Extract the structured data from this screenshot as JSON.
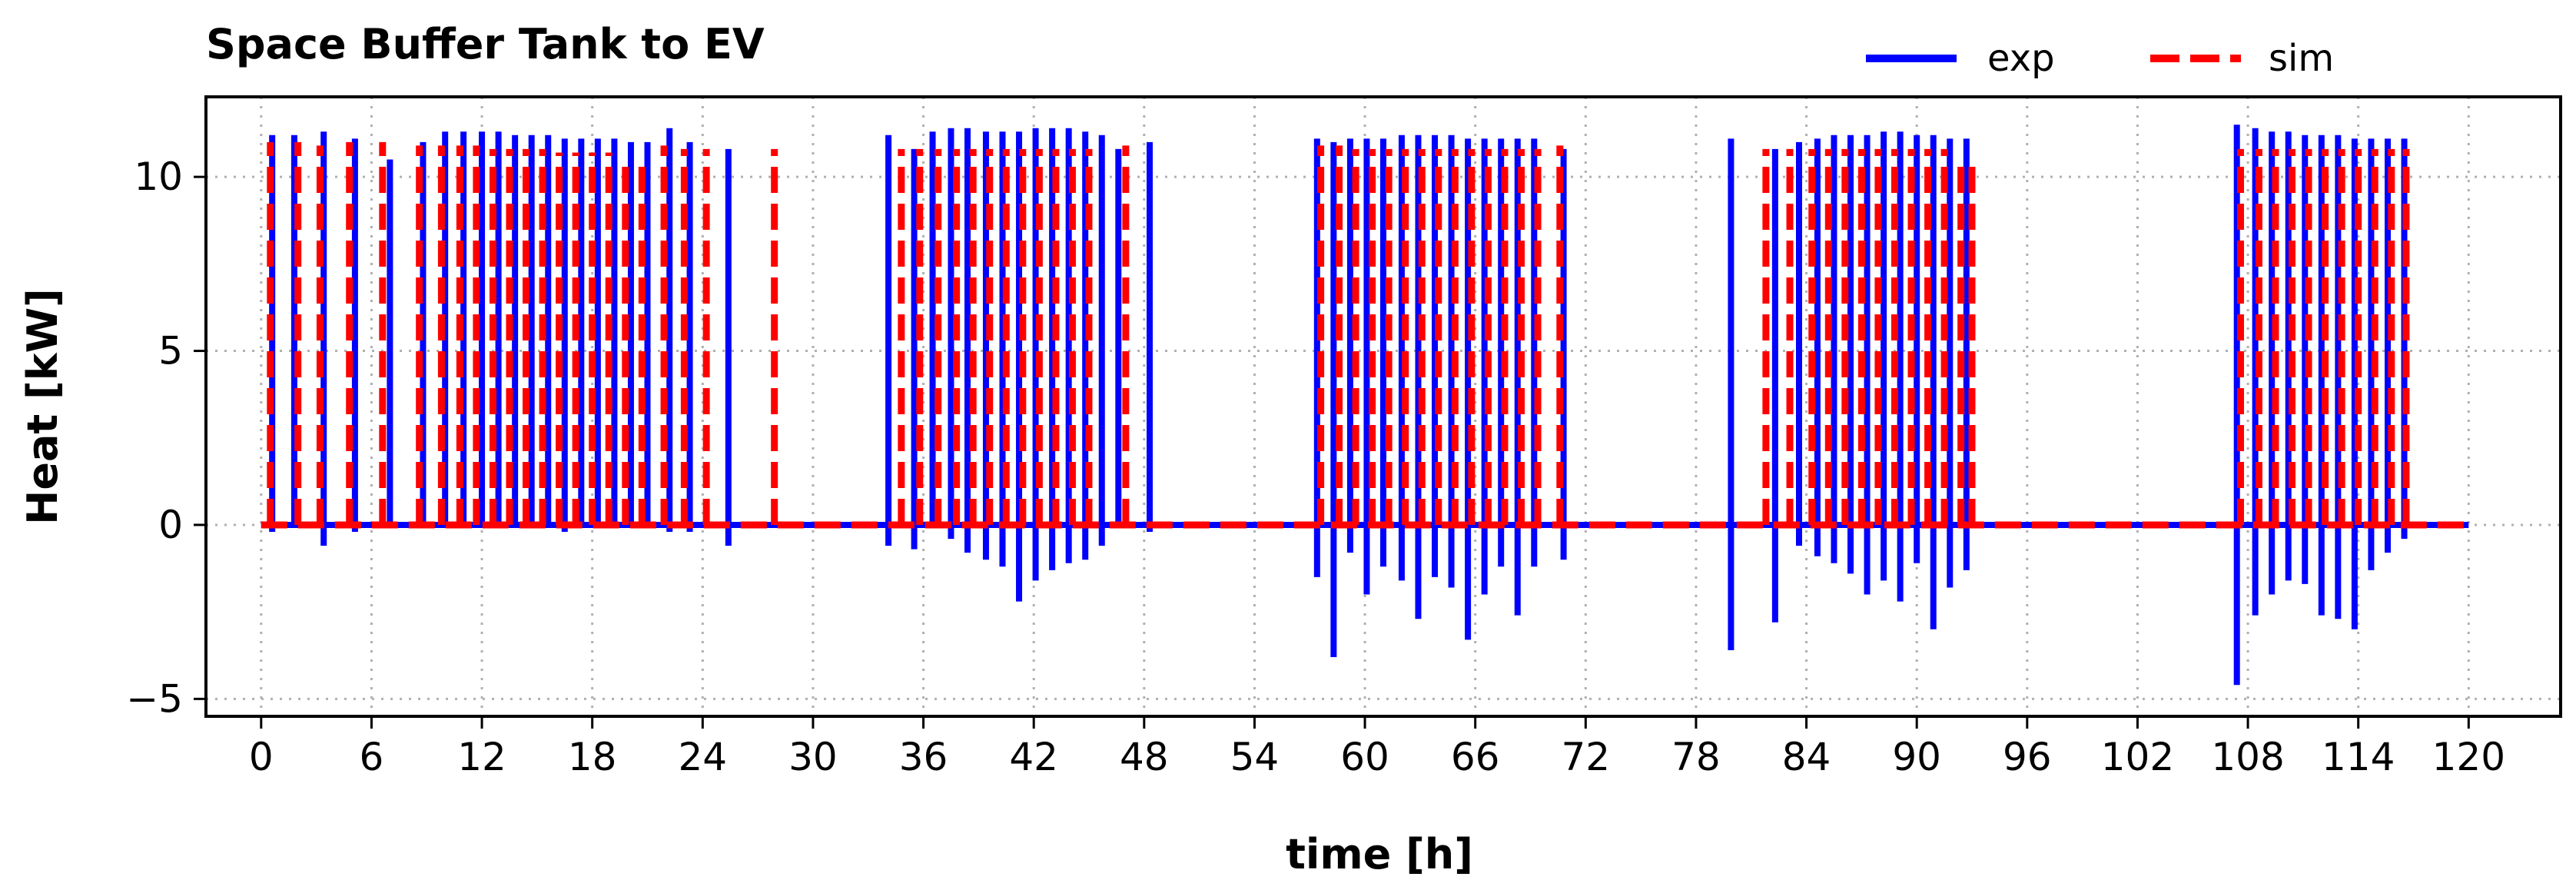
{
  "chart_data": {
    "type": "line",
    "title": "Space Buffer Tank to EV",
    "xlabel": "time [h]",
    "ylabel": "Heat [kW]",
    "xlim": [
      -3,
      125
    ],
    "ylim": [
      -5.5,
      12.3
    ],
    "xticks": [
      0,
      6,
      12,
      18,
      24,
      30,
      36,
      42,
      48,
      54,
      60,
      66,
      72,
      78,
      84,
      90,
      96,
      102,
      108,
      114,
      120
    ],
    "xtick_labels": [
      "0",
      "6",
      "12",
      "18",
      "24",
      "30",
      "36",
      "42",
      "48",
      "54",
      "60",
      "66",
      "72",
      "78",
      "84",
      "90",
      "96",
      "102",
      "108",
      "114",
      "120"
    ],
    "yticks": [
      -5,
      0,
      5,
      10
    ],
    "ytick_labels": [
      "−5",
      "0",
      "5",
      "10"
    ],
    "grid": true,
    "legend_position": "top-right, outside above axes",
    "series": [
      {
        "name": "exp",
        "color": "#0000ff",
        "style": "solid",
        "pulses": [
          {
            "t": 0.6,
            "peak": 11.2,
            "neg": -0.2
          },
          {
            "t": 1.8,
            "peak": 11.2,
            "neg": 0
          },
          {
            "t": 3.4,
            "peak": 11.3,
            "neg": -0.6
          },
          {
            "t": 5.1,
            "peak": 11.1,
            "neg": -0.2
          },
          {
            "t": 7.0,
            "peak": 10.5,
            "neg": 0
          },
          {
            "t": 8.8,
            "peak": 11.0,
            "neg": 0
          },
          {
            "t": 10.0,
            "peak": 11.3,
            "neg": 0
          },
          {
            "t": 11.0,
            "peak": 11.3,
            "neg": 0
          },
          {
            "t": 12.0,
            "peak": 11.3,
            "neg": 0
          },
          {
            "t": 12.9,
            "peak": 11.3,
            "neg": 0
          },
          {
            "t": 13.8,
            "peak": 11.2,
            "neg": 0
          },
          {
            "t": 14.7,
            "peak": 11.2,
            "neg": 0
          },
          {
            "t": 15.6,
            "peak": 11.2,
            "neg": 0
          },
          {
            "t": 16.5,
            "peak": 11.1,
            "neg": -0.2
          },
          {
            "t": 17.4,
            "peak": 11.1,
            "neg": 0
          },
          {
            "t": 18.3,
            "peak": 11.1,
            "neg": 0
          },
          {
            "t": 19.2,
            "peak": 11.1,
            "neg": 0
          },
          {
            "t": 20.1,
            "peak": 11.0,
            "neg": 0
          },
          {
            "t": 21.0,
            "peak": 11.0,
            "neg": 0
          },
          {
            "t": 22.2,
            "peak": 11.4,
            "neg": -0.2
          },
          {
            "t": 23.3,
            "peak": 11.0,
            "neg": -0.2
          },
          {
            "t": 25.4,
            "peak": 10.8,
            "neg": -0.6
          },
          {
            "t": 34.1,
            "peak": 11.2,
            "neg": -0.6
          },
          {
            "t": 35.5,
            "peak": 10.8,
            "neg": -0.7
          },
          {
            "t": 36.5,
            "peak": 11.3,
            "neg": 0
          },
          {
            "t": 37.5,
            "peak": 11.4,
            "neg": -0.4
          },
          {
            "t": 38.4,
            "peak": 11.4,
            "neg": -0.8
          },
          {
            "t": 39.4,
            "peak": 11.3,
            "neg": -1.0
          },
          {
            "t": 40.3,
            "peak": 11.3,
            "neg": -1.2
          },
          {
            "t": 41.2,
            "peak": 11.3,
            "neg": -2.2
          },
          {
            "t": 42.1,
            "peak": 11.4,
            "neg": -1.6
          },
          {
            "t": 43.0,
            "peak": 11.4,
            "neg": -1.3
          },
          {
            "t": 43.9,
            "peak": 11.4,
            "neg": -1.1
          },
          {
            "t": 44.8,
            "peak": 11.3,
            "neg": -1.0
          },
          {
            "t": 45.7,
            "peak": 11.2,
            "neg": -0.6
          },
          {
            "t": 46.6,
            "peak": 10.8,
            "neg": 0
          },
          {
            "t": 48.3,
            "peak": 11.0,
            "neg": -0.2
          },
          {
            "t": 57.4,
            "peak": 11.1,
            "neg": -1.5
          },
          {
            "t": 58.3,
            "peak": 11.0,
            "neg": -3.8
          },
          {
            "t": 59.2,
            "peak": 11.1,
            "neg": -0.8
          },
          {
            "t": 60.1,
            "peak": 11.1,
            "neg": -2.0
          },
          {
            "t": 61.0,
            "peak": 11.1,
            "neg": -1.2
          },
          {
            "t": 62.0,
            "peak": 11.2,
            "neg": -1.6
          },
          {
            "t": 62.9,
            "peak": 11.2,
            "neg": -2.7
          },
          {
            "t": 63.8,
            "peak": 11.2,
            "neg": -1.5
          },
          {
            "t": 64.7,
            "peak": 11.2,
            "neg": -1.8
          },
          {
            "t": 65.6,
            "peak": 11.1,
            "neg": -3.3
          },
          {
            "t": 66.5,
            "peak": 11.1,
            "neg": -2.0
          },
          {
            "t": 67.4,
            "peak": 11.1,
            "neg": -1.2
          },
          {
            "t": 68.3,
            "peak": 11.1,
            "neg": -2.6
          },
          {
            "t": 69.2,
            "peak": 11.1,
            "neg": -1.2
          },
          {
            "t": 70.8,
            "peak": 10.8,
            "neg": -1.0
          },
          {
            "t": 79.9,
            "peak": 11.1,
            "neg": -3.6
          },
          {
            "t": 82.3,
            "peak": 10.8,
            "neg": -2.8
          },
          {
            "t": 83.6,
            "peak": 11.0,
            "neg": -0.6
          },
          {
            "t": 84.6,
            "peak": 11.1,
            "neg": -0.9
          },
          {
            "t": 85.5,
            "peak": 11.2,
            "neg": -1.1
          },
          {
            "t": 86.4,
            "peak": 11.2,
            "neg": -1.4
          },
          {
            "t": 87.3,
            "peak": 11.2,
            "neg": -2.0
          },
          {
            "t": 88.2,
            "peak": 11.3,
            "neg": -1.6
          },
          {
            "t": 89.1,
            "peak": 11.3,
            "neg": -2.2
          },
          {
            "t": 90.0,
            "peak": 11.2,
            "neg": -1.1
          },
          {
            "t": 90.9,
            "peak": 11.2,
            "neg": -3.0
          },
          {
            "t": 91.8,
            "peak": 11.1,
            "neg": -1.8
          },
          {
            "t": 92.7,
            "peak": 11.1,
            "neg": -1.3
          },
          {
            "t": 107.4,
            "peak": 11.5,
            "neg": -4.6
          },
          {
            "t": 108.4,
            "peak": 11.4,
            "neg": -2.6
          },
          {
            "t": 109.3,
            "peak": 11.3,
            "neg": -2.0
          },
          {
            "t": 110.2,
            "peak": 11.3,
            "neg": -1.6
          },
          {
            "t": 111.1,
            "peak": 11.2,
            "neg": -1.7
          },
          {
            "t": 112.0,
            "peak": 11.2,
            "neg": -2.6
          },
          {
            "t": 112.9,
            "peak": 11.2,
            "neg": -2.7
          },
          {
            "t": 113.8,
            "peak": 11.1,
            "neg": -3.0
          },
          {
            "t": 114.7,
            "peak": 11.1,
            "neg": -1.3
          },
          {
            "t": 115.6,
            "peak": 11.1,
            "neg": -0.8
          },
          {
            "t": 116.5,
            "peak": 11.1,
            "neg": -0.4
          }
        ]
      },
      {
        "name": "sim",
        "color": "#ff0000",
        "style": "dashed",
        "pulses": [
          {
            "t": 0.5,
            "peak": 11.0
          },
          {
            "t": 2.0,
            "peak": 11.0
          },
          {
            "t": 3.2,
            "peak": 10.9
          },
          {
            "t": 4.8,
            "peak": 11.0
          },
          {
            "t": 6.6,
            "peak": 11.0
          },
          {
            "t": 8.6,
            "peak": 10.9
          },
          {
            "t": 9.8,
            "peak": 10.9
          },
          {
            "t": 10.8,
            "peak": 10.9
          },
          {
            "t": 11.7,
            "peak": 10.9
          },
          {
            "t": 12.6,
            "peak": 10.8
          },
          {
            "t": 13.5,
            "peak": 10.8
          },
          {
            "t": 14.4,
            "peak": 10.8
          },
          {
            "t": 15.3,
            "peak": 10.8
          },
          {
            "t": 16.2,
            "peak": 10.7
          },
          {
            "t": 17.1,
            "peak": 10.7
          },
          {
            "t": 18.0,
            "peak": 10.7
          },
          {
            "t": 18.9,
            "peak": 10.7
          },
          {
            "t": 19.8,
            "peak": 10.6
          },
          {
            "t": 20.7,
            "peak": 10.6
          },
          {
            "t": 21.9,
            "peak": 10.9
          },
          {
            "t": 23.0,
            "peak": 10.8
          },
          {
            "t": 24.2,
            "peak": 10.8
          },
          {
            "t": 27.9,
            "peak": 10.8
          },
          {
            "t": 34.8,
            "peak": 10.8
          },
          {
            "t": 35.8,
            "peak": 10.8
          },
          {
            "t": 36.8,
            "peak": 10.8
          },
          {
            "t": 37.8,
            "peak": 10.8
          },
          {
            "t": 38.7,
            "peak": 10.8
          },
          {
            "t": 39.6,
            "peak": 10.8
          },
          {
            "t": 40.5,
            "peak": 10.8
          },
          {
            "t": 41.4,
            "peak": 10.8
          },
          {
            "t": 42.3,
            "peak": 10.8
          },
          {
            "t": 43.2,
            "peak": 10.8
          },
          {
            "t": 44.1,
            "peak": 10.8
          },
          {
            "t": 45.0,
            "peak": 10.8
          },
          {
            "t": 47.0,
            "peak": 10.9
          },
          {
            "t": 57.6,
            "peak": 10.9
          },
          {
            "t": 58.6,
            "peak": 10.9
          },
          {
            "t": 59.5,
            "peak": 10.8
          },
          {
            "t": 60.4,
            "peak": 10.8
          },
          {
            "t": 61.3,
            "peak": 10.8
          },
          {
            "t": 62.2,
            "peak": 10.8
          },
          {
            "t": 63.1,
            "peak": 10.8
          },
          {
            "t": 64.0,
            "peak": 10.8
          },
          {
            "t": 64.9,
            "peak": 10.8
          },
          {
            "t": 65.8,
            "peak": 10.8
          },
          {
            "t": 66.7,
            "peak": 10.8
          },
          {
            "t": 67.6,
            "peak": 10.8
          },
          {
            "t": 68.5,
            "peak": 10.8
          },
          {
            "t": 69.4,
            "peak": 10.8
          },
          {
            "t": 70.6,
            "peak": 10.9
          },
          {
            "t": 81.8,
            "peak": 10.8
          },
          {
            "t": 83.1,
            "peak": 10.8
          },
          {
            "t": 84.3,
            "peak": 10.8
          },
          {
            "t": 85.2,
            "peak": 10.8
          },
          {
            "t": 86.1,
            "peak": 10.8
          },
          {
            "t": 87.0,
            "peak": 10.8
          },
          {
            "t": 87.9,
            "peak": 10.8
          },
          {
            "t": 88.8,
            "peak": 10.8
          },
          {
            "t": 89.7,
            "peak": 10.8
          },
          {
            "t": 90.6,
            "peak": 10.8
          },
          {
            "t": 91.5,
            "peak": 10.8
          },
          {
            "t": 92.4,
            "peak": 10.6
          },
          {
            "t": 93.0,
            "peak": 10.3
          },
          {
            "t": 107.6,
            "peak": 10.8
          },
          {
            "t": 108.6,
            "peak": 10.8
          },
          {
            "t": 109.5,
            "peak": 10.8
          },
          {
            "t": 110.4,
            "peak": 10.8
          },
          {
            "t": 111.3,
            "peak": 10.8
          },
          {
            "t": 112.2,
            "peak": 10.8
          },
          {
            "t": 113.1,
            "peak": 10.8
          },
          {
            "t": 114.0,
            "peak": 10.8
          },
          {
            "t": 114.9,
            "peak": 10.8
          },
          {
            "t": 115.8,
            "peak": 10.8
          },
          {
            "t": 116.6,
            "peak": 10.8
          }
        ]
      }
    ]
  }
}
